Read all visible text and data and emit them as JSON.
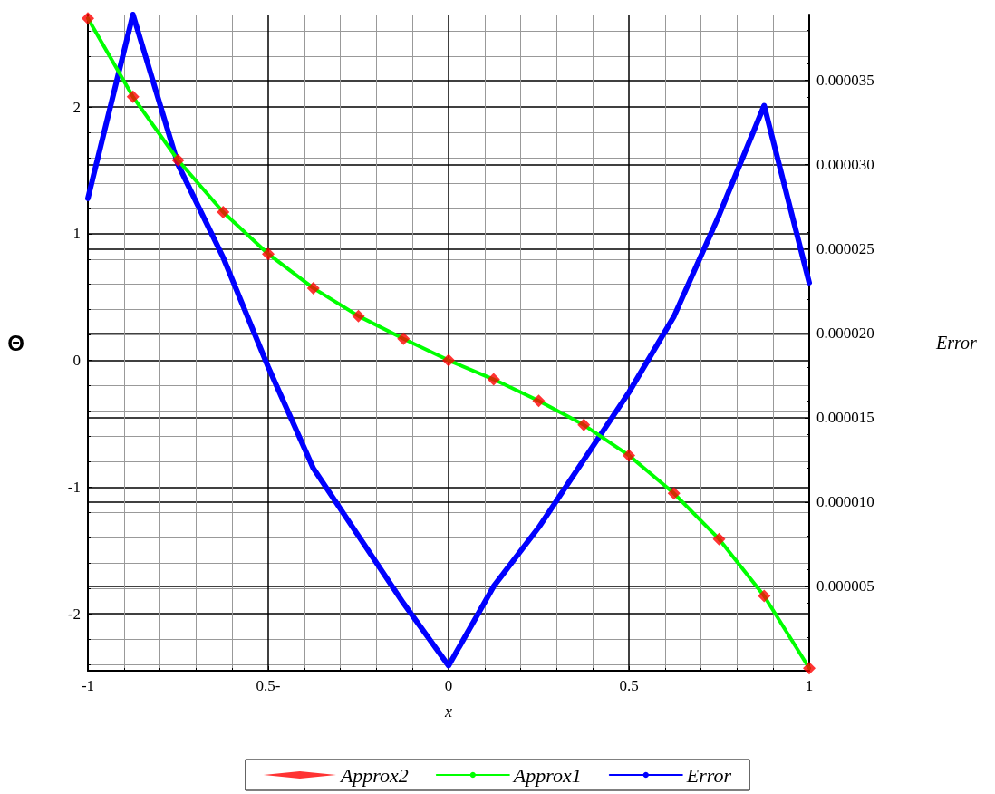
{
  "chart_data": {
    "type": "line",
    "xlabel": "x",
    "ylabel": "Θ",
    "y2label": "Error",
    "xlim": [
      -1,
      1
    ],
    "xticks": [
      -1,
      {
        "value": -0.5,
        "label": "0.5-"
      },
      0,
      0.5,
      1
    ],
    "ylim": [
      -2.45,
      2.73
    ],
    "yticks": [
      -2,
      -1,
      0,
      1,
      2
    ],
    "y2lim": [
      0,
      3.89e-05
    ],
    "y2ticks": [
      {
        "value": 5e-06,
        "label": "0.000005"
      },
      {
        "value": 1e-05,
        "label": "0.000010"
      },
      {
        "value": 1.5e-05,
        "label": "0.000015"
      },
      {
        "value": 2e-05,
        "label": "0.000020"
      },
      {
        "value": 2.5e-05,
        "label": "0.000025"
      },
      {
        "value": 3e-05,
        "label": "0.000030"
      },
      {
        "value": 3.5e-05,
        "label": "0.000035"
      }
    ],
    "x": [
      -1,
      -0.875,
      -0.75,
      -0.625,
      -0.5,
      -0.375,
      -0.25,
      -0.125,
      0,
      0.125,
      0.25,
      0.375,
      0.5,
      0.625,
      0.75,
      0.875,
      1
    ],
    "series": [
      {
        "name": "Approx2",
        "type": "scatter",
        "marker": "diamond",
        "color": "#ff0000",
        "values": [
          2.7,
          2.08,
          1.58,
          1.17,
          0.84,
          0.57,
          0.35,
          0.17,
          0.0,
          -0.15,
          -0.32,
          -0.51,
          -0.75,
          -1.05,
          -1.41,
          -1.86,
          -2.43
        ]
      },
      {
        "name": "Approx1",
        "marker": "none",
        "color": "#00ff00",
        "values": [
          2.7,
          2.08,
          1.58,
          1.17,
          0.84,
          0.57,
          0.35,
          0.17,
          0.0,
          -0.15,
          -0.32,
          -0.51,
          -0.75,
          -1.05,
          -1.41,
          -1.86,
          -2.43
        ]
      },
      {
        "name": "Error",
        "marker": "none",
        "axis": "y2",
        "color": "#0000ff",
        "values": [
          2.8e-05,
          3.89e-05,
          3e-05,
          2.45e-05,
          1.8e-05,
          1.2e-05,
          8e-06,
          4e-06,
          3e-07,
          5e-06,
          8.5e-06,
          1.25e-05,
          1.65e-05,
          2.1e-05,
          2.7e-05,
          3.35e-05,
          2.3e-05
        ]
      }
    ],
    "grid": true,
    "legend": "bottom",
    "line_style": "solid"
  }
}
